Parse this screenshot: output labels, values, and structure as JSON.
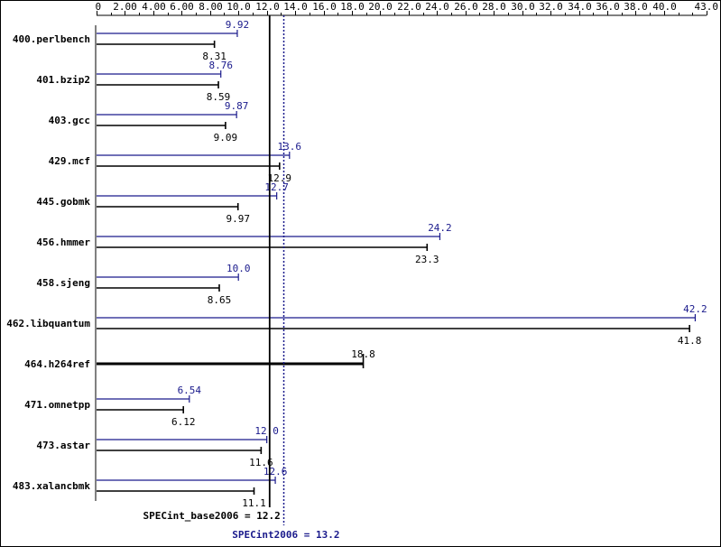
{
  "chart_data": {
    "type": "bar",
    "orientation": "horizontal",
    "xlim": [
      0,
      43
    ],
    "ticks": [
      "0",
      "2.00",
      "4.00",
      "6.00",
      "8.00",
      "10.0",
      "12.0",
      "14.0",
      "16.0",
      "18.0",
      "20.0",
      "22.0",
      "24.0",
      "26.0",
      "28.0",
      "30.0",
      "32.0",
      "34.0",
      "36.0",
      "38.0",
      "40.0",
      "43.0"
    ],
    "tick_values": [
      0,
      2,
      4,
      6,
      8,
      10,
      12,
      14,
      16,
      18,
      20,
      22,
      24,
      26,
      28,
      30,
      32,
      34,
      36,
      38,
      40,
      43
    ],
    "benchmarks": [
      {
        "name": "400.perlbench",
        "peak": 9.92,
        "peak_label": "9.92",
        "base": 8.31,
        "base_label": "8.31"
      },
      {
        "name": "401.bzip2",
        "peak": 8.76,
        "peak_label": "8.76",
        "base": 8.59,
        "base_label": "8.59"
      },
      {
        "name": "403.gcc",
        "peak": 9.87,
        "peak_label": "9.87",
        "base": 9.09,
        "base_label": "9.09"
      },
      {
        "name": "429.mcf",
        "peak": 13.6,
        "peak_label": "13.6",
        "base": 12.9,
        "base_label": "12.9"
      },
      {
        "name": "445.gobmk",
        "peak": 12.7,
        "peak_label": "12.7",
        "base": 9.97,
        "base_label": "9.97"
      },
      {
        "name": "456.hmmer",
        "peak": 24.2,
        "peak_label": "24.2",
        "base": 23.3,
        "base_label": "23.3"
      },
      {
        "name": "458.sjeng",
        "peak": 10.0,
        "peak_label": "10.0",
        "base": 8.65,
        "base_label": "8.65"
      },
      {
        "name": "462.libquantum",
        "peak": 42.2,
        "peak_label": "42.2",
        "base": 41.8,
        "base_label": "41.8"
      },
      {
        "name": "464.h264ref",
        "peak": null,
        "peak_label": "",
        "base": 18.8,
        "base_label": "18.8"
      },
      {
        "name": "471.omnetpp",
        "peak": 6.54,
        "peak_label": "6.54",
        "base": 6.12,
        "base_label": "6.12"
      },
      {
        "name": "473.astar",
        "peak": 12.0,
        "peak_label": "12.0",
        "base": 11.6,
        "base_label": "11.6"
      },
      {
        "name": "483.xalancbmk",
        "peak": 12.6,
        "peak_label": "12.6",
        "base": 11.1,
        "base_label": "11.1"
      }
    ],
    "summary": {
      "base_value": 12.2,
      "base_label": "SPECint_base2006 = 12.2",
      "peak_value": 13.2,
      "peak_label": "SPECint2006 = 13.2"
    },
    "colors": {
      "peak": "#1a1a8c",
      "base": "#000000"
    }
  }
}
